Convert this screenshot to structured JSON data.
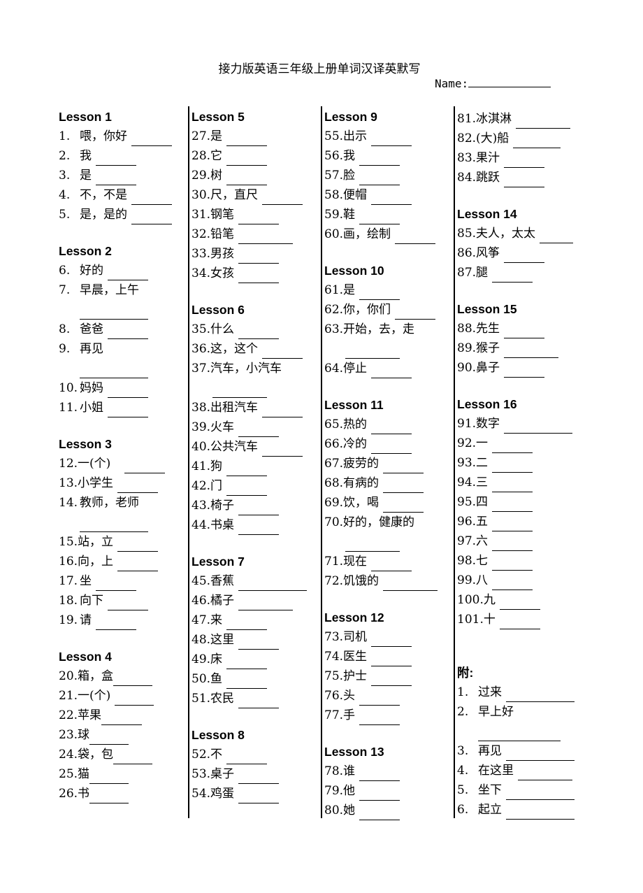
{
  "title": "接力版英语三年级上册单词汉译英默写",
  "name_label": "Name:",
  "columns": [
    [
      {
        "h": "Lesson 1"
      },
      {
        "n": "1.",
        "t": "喂，你好",
        "w": 58,
        "pad": true
      },
      {
        "n": "2.",
        "t": "我",
        "w": 58,
        "pad": true
      },
      {
        "n": "3.",
        "t": "是",
        "w": 58,
        "pad": true
      },
      {
        "n": "4.",
        "t": "不，不是",
        "w": 58,
        "pad": true
      },
      {
        "n": "5.",
        "t": "是，是的",
        "w": 58,
        "pad": true
      },
      {
        "s": 1
      },
      {
        "h": "Lesson 2"
      },
      {
        "n": "6.",
        "t": "好的",
        "w": 58,
        "pad": true
      },
      {
        "n": "7.",
        "t": "早晨，上午",
        "pad": true
      },
      {
        "line": 98,
        "indent": 30
      },
      {
        "n": "8.",
        "t": "爸爸",
        "w": 58,
        "pad": true
      },
      {
        "n": "9.",
        "t": "再见",
        "pad": true
      },
      {
        "line": 98,
        "indent": 30
      },
      {
        "n": "10.",
        "t": "妈妈",
        "w": 58,
        "pad": true
      },
      {
        "n": "11.",
        "t": "小姐",
        "w": 58,
        "pad": true
      },
      {
        "s": 1
      },
      {
        "h": "Lesson 3"
      },
      {
        "n": "12.",
        "t": "一(个)",
        "w": 58,
        "gap": 20
      },
      {
        "n": "13.",
        "t": "小学生",
        "w": 58
      },
      {
        "n": "14.",
        "t": "教师，老师",
        "pad": true
      },
      {
        "line": 98,
        "indent": 30
      },
      {
        "n": "15.",
        "t": "站，立",
        "w": 58
      },
      {
        "n": "16.",
        "t": "向，上",
        "w": 58
      },
      {
        "n": "17.",
        "t": "坐",
        "w": 58,
        "pad": true
      },
      {
        "n": "18.",
        "t": "向下",
        "w": 58,
        "pad": true
      },
      {
        "n": "19.",
        "t": "请",
        "w": 58,
        "pad": true
      },
      {
        "s": 1
      },
      {
        "h": "Lesson 4"
      },
      {
        "n": "20.",
        "t": "箱，盒",
        "w": 56,
        "gap": 0
      },
      {
        "n": "21.",
        "t": "一(个)",
        "w": 56
      },
      {
        "n": "22.",
        "t": "苹果",
        "w": 58,
        "gap": 0
      },
      {
        "n": "23.",
        "t": "球",
        "w": 56,
        "gap": 0
      },
      {
        "n": "24.",
        "t": "袋，包",
        "w": 56,
        "gap": 0
      },
      {
        "n": "25.",
        "t": "猫",
        "w": 56,
        "gap": 0
      },
      {
        "n": "26.",
        "t": "书",
        "w": 56,
        "gap": 0
      }
    ],
    [
      {
        "h": "Lesson 5"
      },
      {
        "n": "27.",
        "t": "是",
        "w": 58
      },
      {
        "n": "28.",
        "t": "它",
        "w": 58
      },
      {
        "n": "29.",
        "t": "树",
        "w": 58
      },
      {
        "n": "30.",
        "t": "尺，直尺",
        "w": 58
      },
      {
        "n": "31.",
        "t": "钢笔",
        "w": 58
      },
      {
        "n": "32.",
        "t": "铅笔",
        "w": 78
      },
      {
        "n": "33.",
        "t": "男孩",
        "w": 58
      },
      {
        "n": "34.",
        "t": "女孩",
        "w": 58
      },
      {
        "s": 1
      },
      {
        "h": "Lesson 6"
      },
      {
        "n": "35.",
        "t": "什么",
        "w": 58
      },
      {
        "n": "36.",
        "t": "这，这个",
        "w": 58
      },
      {
        "n": "37.",
        "t": "汽车，小汽车"
      },
      {
        "line": 78,
        "indent": 30
      },
      {
        "n": "38.",
        "t": "出租汽车",
        "w": 58
      },
      {
        "n": "39.",
        "t": "火车",
        "w": 58
      },
      {
        "n": "40.",
        "t": "公共汽车",
        "w": 58
      },
      {
        "n": "41.",
        "t": "狗",
        "w": 58
      },
      {
        "n": "42.",
        "t": "门",
        "w": 58
      },
      {
        "n": "43.",
        "t": "椅子",
        "w": 58
      },
      {
        "n": "44.",
        "t": "书桌",
        "w": 58
      },
      {
        "s": 1
      },
      {
        "h": "Lesson 7"
      },
      {
        "n": "45.",
        "t": "香蕉",
        "w": 98
      },
      {
        "n": "46.",
        "t": "橘子",
        "w": 78
      },
      {
        "n": "47.",
        "t": "来",
        "w": 58
      },
      {
        "n": "48.",
        "t": "这里",
        "w": 58
      },
      {
        "n": "49.",
        "t": "床",
        "w": 58
      },
      {
        "n": "50.",
        "t": "鱼",
        "w": 58
      },
      {
        "n": "51.",
        "t": "农民",
        "w": 58
      },
      {
        "s": 1
      },
      {
        "h": "Lesson 8"
      },
      {
        "n": "52.",
        "t": "不",
        "w": 58
      },
      {
        "n": "53.",
        "t": "桌子",
        "w": 58
      },
      {
        "n": "54.",
        "t": "鸡蛋",
        "w": 58
      }
    ],
    [
      {
        "h": "Lesson 9"
      },
      {
        "n": "55.",
        "t": "出示",
        "w": 58
      },
      {
        "n": "56.",
        "t": "我",
        "w": 58
      },
      {
        "n": "57.",
        "t": "脸",
        "w": 58
      },
      {
        "n": "58.",
        "t": "便帽",
        "w": 58
      },
      {
        "n": "59.",
        "t": "鞋",
        "w": 58
      },
      {
        "n": "60.",
        "t": "画，绘制",
        "w": 58
      },
      {
        "s": 1
      },
      {
        "h": "Lesson 10"
      },
      {
        "n": "61.",
        "t": "是",
        "w": 58
      },
      {
        "n": "62.",
        "t": "你，你们",
        "w": 58
      },
      {
        "n": "63.",
        "t": "开始，去，走"
      },
      {
        "line": 78,
        "indent": 30
      },
      {
        "n": "64.",
        "t": "停止",
        "w": 58
      },
      {
        "s": 1
      },
      {
        "h": "Lesson 11"
      },
      {
        "n": "65.",
        "t": "热的",
        "w": 58
      },
      {
        "n": "66.",
        "t": "冷的",
        "w": 58
      },
      {
        "n": "67.",
        "t": "疲劳的",
        "w": 58
      },
      {
        "n": "68.",
        "t": "有病的",
        "w": 58
      },
      {
        "n": "69.",
        "t": "饮，喝",
        "w": 58
      },
      {
        "n": "70.",
        "t": "好的，健康的"
      },
      {
        "line": 78,
        "indent": 30
      },
      {
        "n": "71.",
        "t": "现在",
        "w": 58
      },
      {
        "n": "72.",
        "t": "饥饿的",
        "w": 78
      },
      {
        "s": 1
      },
      {
        "h": "Lesson 12"
      },
      {
        "n": "73.",
        "t": "司机",
        "w": 58
      },
      {
        "n": "74.",
        "t": "医生",
        "w": 58
      },
      {
        "n": "75.",
        "t": "护士",
        "w": 58
      },
      {
        "n": "76.",
        "t": "头",
        "w": 58
      },
      {
        "n": "77.",
        "t": "手",
        "w": 58
      },
      {
        "s": 1
      },
      {
        "h": "Lesson 13"
      },
      {
        "n": "78.",
        "t": "谁",
        "w": 58
      },
      {
        "n": "79.",
        "t": "他",
        "w": 58
      },
      {
        "n": "80.",
        "t": "她",
        "w": 58
      }
    ],
    [
      {
        "n": "81.",
        "t": "冰淇淋",
        "w": 78
      },
      {
        "n": "82.",
        "t": "(大)船",
        "w": 68
      },
      {
        "n": "83.",
        "t": "果汁",
        "w": 58
      },
      {
        "n": "84.",
        "t": "跳跃",
        "w": 58
      },
      {
        "s": 1
      },
      {
        "h": "Lesson 14"
      },
      {
        "n": "85.",
        "t": "夫人，太太",
        "w": 48
      },
      {
        "n": "86.",
        "t": "风筝",
        "w": 58
      },
      {
        "n": "87.",
        "t": "腿",
        "w": 58
      },
      {
        "s": 1
      },
      {
        "h": "Lesson 15"
      },
      {
        "n": "88.",
        "t": "先生",
        "w": 58
      },
      {
        "n": "89.",
        "t": "猴子",
        "w": 78
      },
      {
        "n": "90.",
        "t": "鼻子",
        "w": 58
      },
      {
        "s": 1
      },
      {
        "h": "Lesson 16"
      },
      {
        "n": "91.",
        "t": "数字",
        "w": 98
      },
      {
        "n": "92.",
        "t": "一",
        "w": 58
      },
      {
        "n": "93.",
        "t": "二",
        "w": 58
      },
      {
        "n": "94.",
        "t": "三",
        "w": 58
      },
      {
        "n": "95.",
        "t": "四",
        "w": 58
      },
      {
        "n": "96.",
        "t": "五",
        "w": 58
      },
      {
        "n": "97.",
        "t": "六",
        "w": 58
      },
      {
        "n": "98.",
        "t": "七",
        "w": 58
      },
      {
        "n": "99.",
        "t": "八",
        "w": 58
      },
      {
        "n": "100.",
        "t": "九",
        "w": 58
      },
      {
        "n": "101.",
        "t": "十",
        "w": 58
      },
      {
        "s": 1
      },
      {
        "s": 1
      },
      {
        "h": "附:"
      },
      {
        "n": "1.",
        "t": "过来",
        "w": 98,
        "pad": true
      },
      {
        "n": "2.",
        "t": "早上好",
        "pad": true
      },
      {
        "line": 118,
        "indent": 30
      },
      {
        "n": "3.",
        "t": "再见",
        "w": 98,
        "pad": true
      },
      {
        "n": "4.",
        "t": "在这里",
        "w": 78,
        "pad": true
      },
      {
        "n": "5.",
        "t": "坐下",
        "w": 98,
        "pad": true
      },
      {
        "n": "6.",
        "t": "起立",
        "w": 98,
        "pad": true
      }
    ]
  ]
}
